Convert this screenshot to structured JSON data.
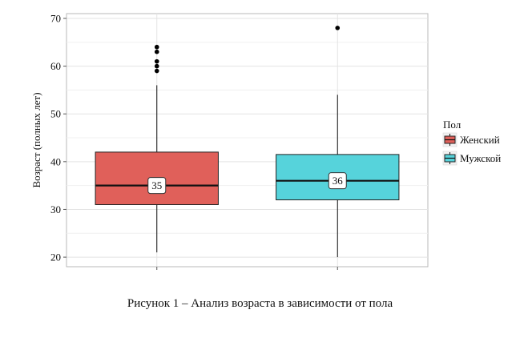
{
  "chart_data": {
    "type": "boxplot",
    "ylabel": "Возраст (полных лет)",
    "xlabel": "",
    "ylim": [
      18,
      71
    ],
    "yticks": [
      20,
      30,
      40,
      50,
      60,
      70
    ],
    "grid": true,
    "legend": {
      "title": "Пол",
      "placement": "right",
      "entries": [
        "Женский",
        "Мужской"
      ]
    },
    "series": [
      {
        "name": "Женский",
        "color": "#E0605A",
        "whisker_low": 21,
        "q1": 31,
        "median": 35,
        "q3": 42,
        "whisker_high": 56,
        "outliers": [
          59,
          60,
          61,
          63,
          64
        ],
        "label": "35"
      },
      {
        "name": "Мужской",
        "color": "#56D3DB",
        "whisker_low": 20,
        "q1": 32,
        "median": 36,
        "q3": 41.5,
        "whisker_high": 54,
        "outliers": [
          68
        ],
        "label": "36"
      }
    ]
  },
  "caption": "Рисунок 1 – Анализ возраста в зависимости от пола"
}
